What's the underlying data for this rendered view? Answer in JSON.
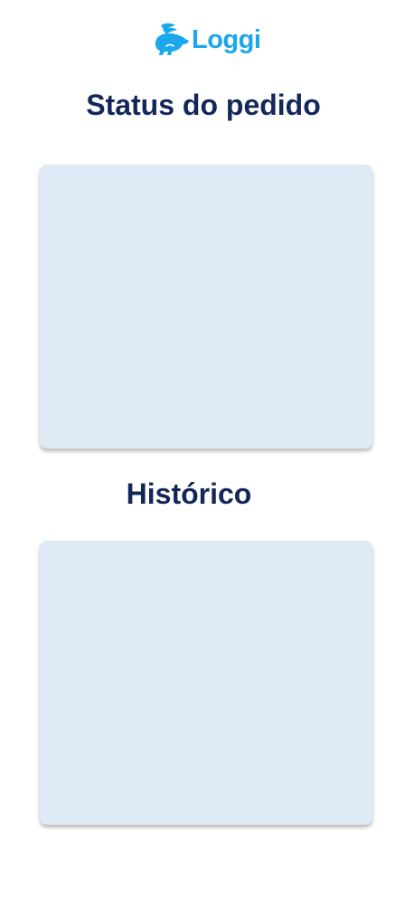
{
  "brand": {
    "name": "Loggi",
    "color": "#1aa7ec",
    "icon": "rabbit-icon"
  },
  "status_section": {
    "title": "Status do pedido"
  },
  "history_section": {
    "title": "Histórico"
  },
  "colors": {
    "title": "#14275a",
    "card_background": "#deebf6"
  }
}
